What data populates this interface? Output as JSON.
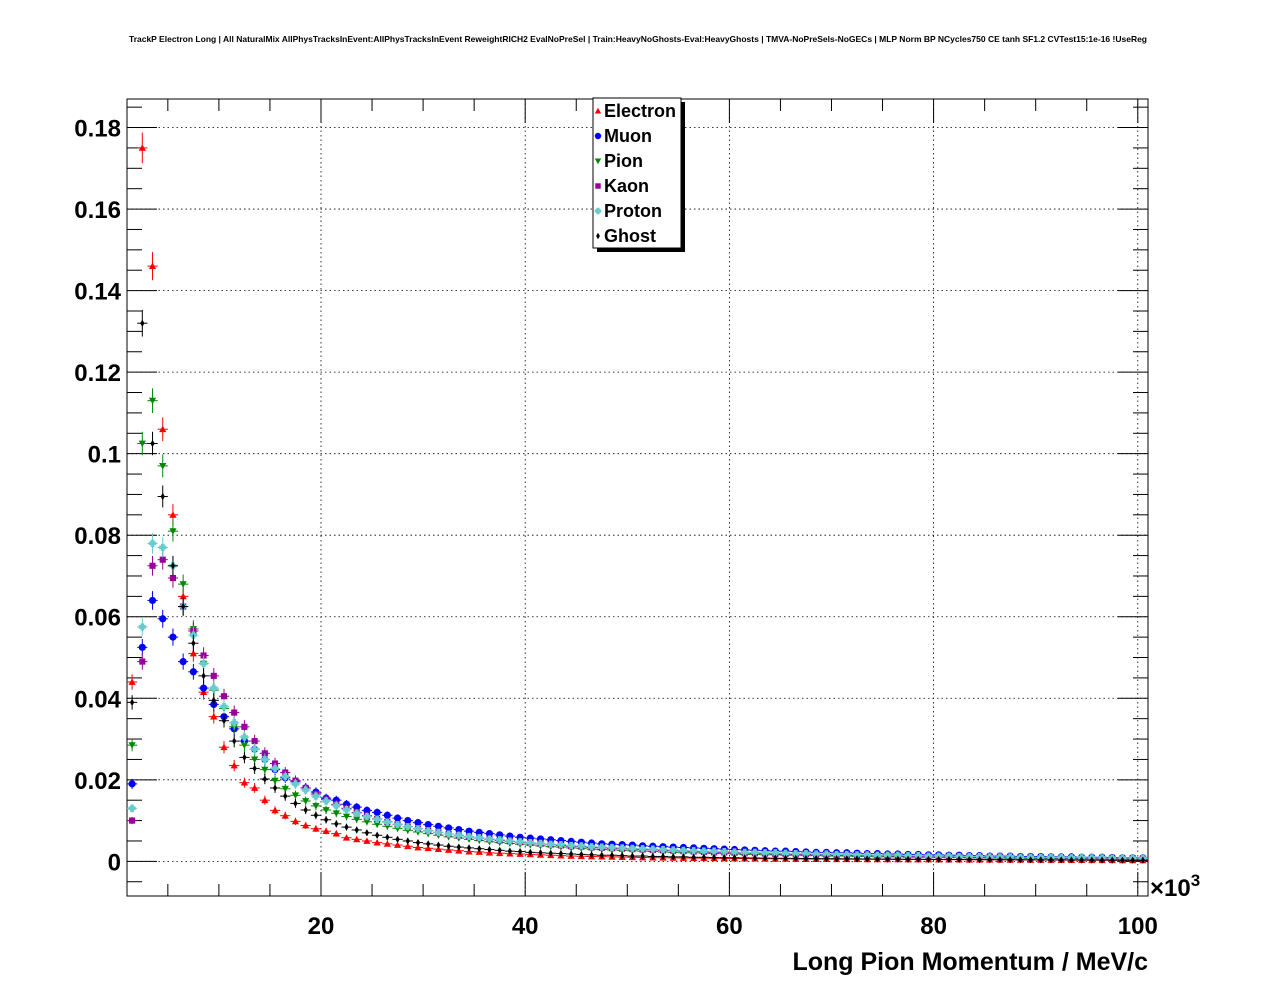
{
  "chart_data": {
    "type": "scatter",
    "title": "TrackP Electron Long | All NaturalMix AllPhysTracksInEvent:AllPhysTracksInEvent ReweightRICH2 EvalNoPreSel | Train:HeavyNoGhosts-Eval:HeavyGhosts | TMVA-NoPreSels-NoGECs | MLP Norm BP NCycles750 CE tanh SF1.2 CVTest15:1e-16 !UseReg",
    "xlabel": "Long Pion Momentum / MeV/c",
    "ylabel": "",
    "x_multiplier_label": "×10",
    "x_multiplier_exp": "3",
    "xlim": [
      1,
      101
    ],
    "ylim": [
      -0.0085,
      0.187
    ],
    "xticks": [
      20,
      40,
      60,
      80,
      100
    ],
    "xtick_labels": [
      "20",
      "40",
      "60",
      "80",
      "100"
    ],
    "yticks": [
      0,
      0.02,
      0.04,
      0.06,
      0.08,
      0.1,
      0.12,
      0.14,
      0.16,
      0.18
    ],
    "ytick_labels": [
      "0",
      "0.02",
      "0.04",
      "0.06",
      "0.08",
      "0.1",
      "0.12",
      "0.14",
      "0.16",
      "0.18"
    ],
    "grid": true,
    "legend_position": "top-center",
    "x": [
      1.5,
      2.5,
      3.5,
      4.5,
      5.5,
      6.5,
      7.5,
      8.5,
      9.5,
      10.5,
      11.5,
      12.5,
      13.5,
      14.5,
      15.5,
      16.5,
      17.5,
      18.5,
      19.5,
      20.5,
      21.5,
      22.5,
      23.5,
      24.5,
      25.5,
      26.5,
      27.5,
      28.5,
      29.5,
      30.5,
      31.5,
      32.5,
      33.5,
      34.5,
      35.5,
      36.5,
      37.5,
      38.5,
      39.5,
      40.5,
      41.5,
      42.5,
      43.5,
      44.5,
      45.5,
      46.5,
      47.5,
      48.5,
      49.5,
      50.5,
      51.5,
      52.5,
      53.5,
      54.5,
      55.5,
      56.5,
      57.5,
      58.5,
      59.5,
      60.5,
      61.5,
      62.5,
      63.5,
      64.5,
      65.5,
      66.5,
      67.5,
      68.5,
      69.5,
      70.5,
      71.5,
      72.5,
      73.5,
      74.5,
      75.5,
      76.5,
      77.5,
      78.5,
      79.5,
      80.5,
      81.5,
      82.5,
      83.5,
      84.5,
      85.5,
      86.5,
      87.5,
      88.5,
      89.5,
      90.5,
      91.5,
      92.5,
      93.5,
      94.5,
      95.5,
      96.5,
      97.5,
      98.5,
      99.5,
      100.5
    ],
    "series": [
      {
        "name": "Electron",
        "marker": "triangle-up",
        "color": "#ff0000",
        "values": [
          0.044,
          0.175,
          0.146,
          0.106,
          0.085,
          0.065,
          0.051,
          0.0415,
          0.0355,
          0.028,
          0.0235,
          0.0193,
          0.018,
          0.015,
          0.0125,
          0.0112,
          0.0098,
          0.0088,
          0.008,
          0.0074,
          0.0068,
          0.0058,
          0.0054,
          0.005,
          0.0046,
          0.0043,
          0.004,
          0.0037,
          0.0034,
          0.0032,
          0.003,
          0.0028,
          0.0026,
          0.0024,
          0.0023,
          0.0021,
          0.002,
          0.0019,
          0.0018,
          0.0017,
          0.0016,
          0.0015,
          0.0014,
          0.0013,
          0.00125,
          0.0012,
          0.00115,
          0.0011,
          0.00105,
          0.001,
          0.00095,
          0.0009,
          0.00088,
          0.00085,
          0.00082,
          0.0008,
          0.00078,
          0.00075,
          0.00072,
          0.0007,
          0.00068,
          0.00066,
          0.00064,
          0.00062,
          0.0006,
          0.00058,
          0.00056,
          0.00055,
          0.00054,
          0.00053,
          0.00052,
          0.00051,
          0.0005,
          0.00049,
          0.00048,
          0.00047,
          0.00046,
          0.00045,
          0.00044,
          0.00043,
          0.00042,
          0.00041,
          0.0004,
          0.00039,
          0.00038,
          0.00037,
          0.00036,
          0.00035,
          0.00034,
          0.00033,
          0.00032,
          0.00031,
          0.0003,
          0.00029,
          0.00028,
          0.00027,
          0.00026,
          0.00025,
          0.00024,
          0.00023
        ]
      },
      {
        "name": "Muon",
        "marker": "circle",
        "color": "#0000ff",
        "values": [
          0.019,
          0.0525,
          0.064,
          0.0595,
          0.055,
          0.049,
          0.0465,
          0.0425,
          0.0385,
          0.0355,
          0.0325,
          0.0295,
          0.0275,
          0.025,
          0.0225,
          0.0205,
          0.0195,
          0.018,
          0.017,
          0.0155,
          0.015,
          0.014,
          0.0133,
          0.0125,
          0.012,
          0.0113,
          0.0106,
          0.01,
          0.0095,
          0.009,
          0.0086,
          0.0082,
          0.0078,
          0.0074,
          0.0071,
          0.0068,
          0.0065,
          0.0062,
          0.0059,
          0.0057,
          0.0055,
          0.0053,
          0.0051,
          0.0049,
          0.0047,
          0.0045,
          0.0043,
          0.0042,
          0.0041,
          0.004,
          0.0038,
          0.0037,
          0.0036,
          0.0035,
          0.0034,
          0.0033,
          0.0032,
          0.0031,
          0.003,
          0.0029,
          0.0028,
          0.0027,
          0.0026,
          0.0025,
          0.0025,
          0.0024,
          0.0023,
          0.0022,
          0.0022,
          0.0021,
          0.0021,
          0.002,
          0.0019,
          0.0019,
          0.0018,
          0.0018,
          0.0017,
          0.0017,
          0.0016,
          0.0016,
          0.0015,
          0.0015,
          0.0014,
          0.0014,
          0.0013,
          0.0013,
          0.0013,
          0.0012,
          0.0012,
          0.0012,
          0.0011,
          0.0011,
          0.0011,
          0.001,
          0.001,
          0.001,
          0.00095,
          0.0009,
          0.0009,
          0.00085
        ]
      },
      {
        "name": "Pion",
        "marker": "triangle-down",
        "color": "#008800",
        "values": [
          0.0285,
          0.1025,
          0.113,
          0.097,
          0.081,
          0.068,
          0.057,
          0.0485,
          0.042,
          0.0375,
          0.033,
          0.0285,
          0.025,
          0.0225,
          0.0198,
          0.0178,
          0.0162,
          0.0148,
          0.0136,
          0.0126,
          0.0118,
          0.011,
          0.0103,
          0.0097,
          0.0091,
          0.0086,
          0.0081,
          0.0076,
          0.0072,
          0.0068,
          0.0064,
          0.006,
          0.0057,
          0.0054,
          0.0051,
          0.0048,
          0.0046,
          0.0044,
          0.0042,
          0.004,
          0.0038,
          0.0036,
          0.0035,
          0.0033,
          0.0032,
          0.003,
          0.0029,
          0.0028,
          0.0027,
          0.0026,
          0.0025,
          0.0024,
          0.0023,
          0.0022,
          0.0021,
          0.0021,
          0.002,
          0.0019,
          0.0019,
          0.0018,
          0.0017,
          0.0017,
          0.0016,
          0.0016,
          0.0015,
          0.0015,
          0.0014,
          0.0014,
          0.0013,
          0.0013,
          0.0013,
          0.0012,
          0.0012,
          0.0011,
          0.0011,
          0.0011,
          0.001,
          0.001,
          0.001,
          0.00095,
          0.0009,
          0.0009,
          0.00085,
          0.00085,
          0.0008,
          0.0008,
          0.00075,
          0.00075,
          0.0007,
          0.0007,
          0.0007,
          0.00065,
          0.00065,
          0.0006,
          0.0006,
          0.0006,
          0.00055,
          0.00055,
          0.0005,
          0.0005
        ]
      },
      {
        "name": "Kaon",
        "marker": "square",
        "color": "#990099",
        "values": [
          0.01,
          0.049,
          0.0725,
          0.074,
          0.0695,
          0.0625,
          0.0565,
          0.0505,
          0.0455,
          0.0405,
          0.0365,
          0.033,
          0.0295,
          0.0265,
          0.024,
          0.0218,
          0.0198,
          0.018,
          0.0165,
          0.0152,
          0.014,
          0.013,
          0.012,
          0.0112,
          0.0104,
          0.0097,
          0.0091,
          0.0085,
          0.008,
          0.0075,
          0.0071,
          0.0067,
          0.0063,
          0.006,
          0.0057,
          0.0054,
          0.0051,
          0.0049,
          0.0047,
          0.0045,
          0.0043,
          0.0041,
          0.0039,
          0.0037,
          0.0036,
          0.0034,
          0.0033,
          0.0032,
          0.0031,
          0.003,
          0.0029,
          0.0028,
          0.0027,
          0.0026,
          0.0025,
          0.0024,
          0.0023,
          0.0022,
          0.0022,
          0.0021,
          0.002,
          0.002,
          0.0019,
          0.0018,
          0.0018,
          0.0017,
          0.0017,
          0.0016,
          0.0016,
          0.0015,
          0.0015,
          0.0014,
          0.0014,
          0.0014,
          0.0013,
          0.0013,
          0.0012,
          0.0012,
          0.0012,
          0.0011,
          0.0011,
          0.0011,
          0.001,
          0.001,
          0.001,
          0.00095,
          0.0009,
          0.0009,
          0.0009,
          0.00085,
          0.00085,
          0.0008,
          0.0008,
          0.00075,
          0.00075,
          0.0007,
          0.0007,
          0.0007,
          0.00065,
          0.00065
        ]
      },
      {
        "name": "Proton",
        "marker": "cross",
        "color": "#66cccc",
        "values": [
          0.013,
          0.0575,
          0.078,
          0.077,
          0.0725,
          0.0625,
          0.0555,
          0.0485,
          0.0425,
          0.038,
          0.034,
          0.0305,
          0.0275,
          0.025,
          0.0228,
          0.0208,
          0.019,
          0.0175,
          0.016,
          0.0148,
          0.0137,
          0.0127,
          0.0118,
          0.011,
          0.0103,
          0.0096,
          0.009,
          0.0085,
          0.008,
          0.0075,
          0.0071,
          0.0067,
          0.0064,
          0.0061,
          0.0058,
          0.0055,
          0.0053,
          0.005,
          0.0048,
          0.0046,
          0.0044,
          0.0042,
          0.0041,
          0.0039,
          0.0038,
          0.0036,
          0.0035,
          0.0034,
          0.0033,
          0.0032,
          0.0031,
          0.003,
          0.0029,
          0.0028,
          0.0027,
          0.0026,
          0.0025,
          0.0025,
          0.0024,
          0.0023,
          0.0022,
          0.0022,
          0.0021,
          0.0021,
          0.002,
          0.0019,
          0.0019,
          0.0018,
          0.0018,
          0.0017,
          0.0017,
          0.0016,
          0.0016,
          0.0015,
          0.0015,
          0.0015,
          0.0014,
          0.0014,
          0.0013,
          0.0013,
          0.0013,
          0.0012,
          0.0012,
          0.0012,
          0.0011,
          0.0011,
          0.0011,
          0.001,
          0.001,
          0.001,
          0.00095,
          0.00095,
          0.0009,
          0.0009,
          0.00085,
          0.00085,
          0.0008,
          0.0008,
          0.0008,
          0.00075
        ]
      },
      {
        "name": "Ghost",
        "marker": "diamond",
        "color": "#000000",
        "values": [
          0.039,
          0.132,
          0.1025,
          0.0895,
          0.0725,
          0.0625,
          0.0535,
          0.0455,
          0.0395,
          0.0345,
          0.0295,
          0.0255,
          0.0228,
          0.0202,
          0.018,
          0.016,
          0.0142,
          0.0126,
          0.0113,
          0.0102,
          0.0092,
          0.0084,
          0.0077,
          0.007,
          0.0064,
          0.0059,
          0.0054,
          0.005,
          0.0046,
          0.0043,
          0.004,
          0.0037,
          0.0035,
          0.0033,
          0.0031,
          0.0029,
          0.0027,
          0.0025,
          0.0024,
          0.0022,
          0.0021,
          0.002,
          0.0019,
          0.0018,
          0.0017,
          0.0016,
          0.0015,
          0.0015,
          0.0014,
          0.0013,
          0.0013,
          0.0012,
          0.0012,
          0.0011,
          0.0011,
          0.001,
          0.001,
          0.00095,
          0.0009,
          0.00088,
          0.00085,
          0.00082,
          0.0008,
          0.00077,
          0.00075,
          0.00072,
          0.0007,
          0.00068,
          0.00066,
          0.00064,
          0.00062,
          0.0006,
          0.00058,
          0.00056,
          0.00055,
          0.00053,
          0.00052,
          0.0005,
          0.00049,
          0.00047,
          0.00046,
          0.00045,
          0.00044,
          0.00043,
          0.00042,
          0.00041,
          0.0004,
          0.00039,
          0.00038,
          0.00037,
          0.00036,
          0.00035,
          0.00034,
          0.00033,
          0.00032,
          0.00031,
          0.0003,
          0.00029,
          0.00028,
          0.00027
        ]
      }
    ]
  }
}
